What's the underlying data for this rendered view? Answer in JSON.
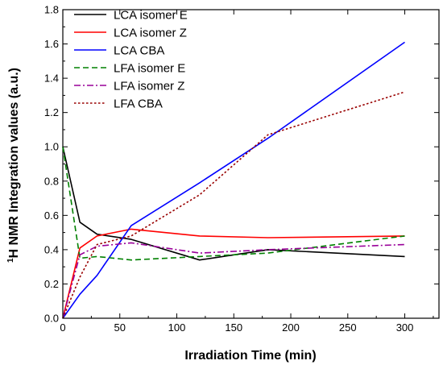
{
  "chart_data": {
    "type": "line",
    "title": "",
    "xlabel": "Irradiation Time (min)",
    "ylabel": "¹H NMR Integration values (a.u.)",
    "ylabel_superscript": "1",
    "ylabel_main": "H NMR Integration values (a.u.)",
    "xlim": [
      0,
      330
    ],
    "ylim": [
      0.0,
      1.8
    ],
    "xticks": [
      0,
      50,
      100,
      150,
      200,
      250,
      300
    ],
    "yticks": [
      "0.0",
      "0.2",
      "0.4",
      "0.6",
      "0.8",
      "1.0",
      "1.2",
      "1.4",
      "1.6",
      "1.8"
    ],
    "grid": false,
    "legend_position": "top-left",
    "series": [
      {
        "name": "LCA isomer E",
        "color": "#000000",
        "dash": "solid",
        "x": [
          0,
          15,
          30,
          60,
          120,
          180,
          300
        ],
        "y": [
          1.0,
          0.56,
          0.49,
          0.46,
          0.34,
          0.4,
          0.36
        ]
      },
      {
        "name": "LCA isomer Z",
        "color": "#ff0000",
        "dash": "solid",
        "x": [
          0,
          15,
          30,
          60,
          120,
          180,
          300
        ],
        "y": [
          0.0,
          0.41,
          0.48,
          0.52,
          0.48,
          0.47,
          0.48
        ]
      },
      {
        "name": "LCA CBA",
        "color": "#0000ff",
        "dash": "solid",
        "x": [
          0,
          15,
          30,
          60,
          120,
          180,
          300
        ],
        "y": [
          0.0,
          0.14,
          0.25,
          0.54,
          0.79,
          1.05,
          1.61
        ]
      },
      {
        "name": "LFA isomer E",
        "color": "#008000",
        "dash": "dash",
        "x": [
          0,
          15,
          30,
          60,
          120,
          180,
          300
        ],
        "y": [
          1.0,
          0.35,
          0.36,
          0.34,
          0.36,
          0.38,
          0.48
        ]
      },
      {
        "name": "LFA isomer Z",
        "color": "#990099",
        "dash": "dashdot",
        "x": [
          0,
          15,
          30,
          60,
          120,
          180,
          300
        ],
        "y": [
          0.0,
          0.37,
          0.42,
          0.44,
          0.38,
          0.4,
          0.43
        ]
      },
      {
        "name": "LFA CBA",
        "color": "#990000",
        "dash": "dot",
        "x": [
          0,
          15,
          30,
          60,
          120,
          180,
          300
        ],
        "y": [
          0.0,
          0.24,
          0.43,
          0.48,
          0.72,
          1.07,
          1.32
        ]
      }
    ]
  }
}
